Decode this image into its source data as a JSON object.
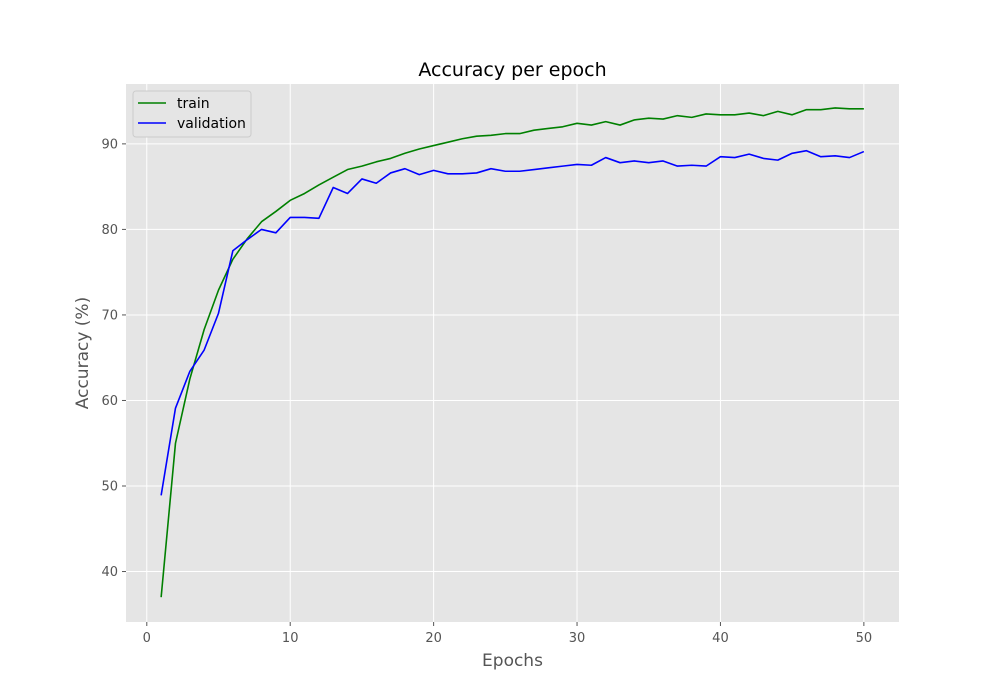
{
  "chart_data": {
    "type": "line",
    "title": "Accuracy per epoch",
    "xlabel": "Epochs",
    "ylabel": "Accuracy (%)",
    "xlim": [
      -1.45,
      52.45
    ],
    "ylim": [
      34.1,
      97.0
    ],
    "xticks": [
      0,
      10,
      20,
      30,
      40,
      50
    ],
    "yticks": [
      40,
      50,
      60,
      70,
      80,
      90
    ],
    "grid": true,
    "legend_position": "top-left",
    "background": "#e5e5e5",
    "x": [
      1,
      2,
      3,
      4,
      5,
      6,
      7,
      8,
      9,
      10,
      11,
      12,
      13,
      14,
      15,
      16,
      17,
      18,
      19,
      20,
      21,
      22,
      23,
      24,
      25,
      26,
      27,
      28,
      29,
      30,
      31,
      32,
      33,
      34,
      35,
      36,
      37,
      38,
      39,
      40,
      41,
      42,
      43,
      44,
      45,
      46,
      47,
      48,
      49,
      50
    ],
    "series": [
      {
        "name": "train",
        "color": "#008000",
        "values": [
          37.0,
          55.0,
          62.5,
          68.3,
          72.9,
          76.5,
          78.9,
          80.9,
          82.1,
          83.4,
          84.2,
          85.2,
          86.1,
          87.0,
          87.4,
          87.9,
          88.3,
          88.9,
          89.4,
          89.8,
          90.2,
          90.6,
          90.9,
          91.0,
          91.2,
          91.2,
          91.6,
          91.8,
          92.0,
          92.4,
          92.2,
          92.6,
          92.2,
          92.8,
          93.0,
          92.9,
          93.3,
          93.1,
          93.5,
          93.4,
          93.4,
          93.6,
          93.3,
          93.8,
          93.4,
          94.0,
          94.0,
          94.2,
          94.1,
          94.1
        ]
      },
      {
        "name": "validation",
        "color": "#0000ff",
        "values": [
          48.9,
          59.1,
          63.4,
          65.9,
          70.2,
          77.5,
          78.8,
          80.0,
          79.6,
          81.4,
          81.4,
          81.3,
          84.9,
          84.2,
          85.9,
          85.4,
          86.6,
          87.1,
          86.4,
          86.9,
          86.5,
          86.5,
          86.6,
          87.1,
          86.8,
          86.8,
          87.0,
          87.2,
          87.4,
          87.6,
          87.5,
          88.4,
          87.8,
          88.0,
          87.8,
          88.0,
          87.4,
          87.5,
          87.4,
          88.5,
          88.4,
          88.8,
          88.3,
          88.1,
          88.9,
          89.2,
          88.5,
          88.6,
          88.4,
          89.1
        ]
      }
    ]
  }
}
